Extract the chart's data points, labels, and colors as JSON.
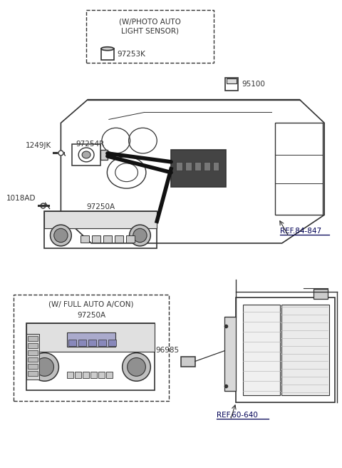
{
  "bg_color": "#ffffff",
  "line_color": "#333333",
  "labels": {
    "photo_auto_box_title": "(W/PHOTO AUTO\nLIGHT SENSOR)",
    "photo_auto_part": "97253K",
    "part_95100": "95100",
    "ref_84847": "REF.84-847",
    "part_1249JK": "1249JK",
    "part_97254R": "97254R",
    "part_1018AD": "1018AD",
    "part_97250A_main": "97250A",
    "full_auto_box_title": "(W/ FULL AUTO A/CON)",
    "part_97250A_sub": "97250A",
    "part_96985": "96985",
    "ref_60640": "REF.60-640"
  },
  "font_size_label": 7.5,
  "font_size_box_title": 7.5
}
